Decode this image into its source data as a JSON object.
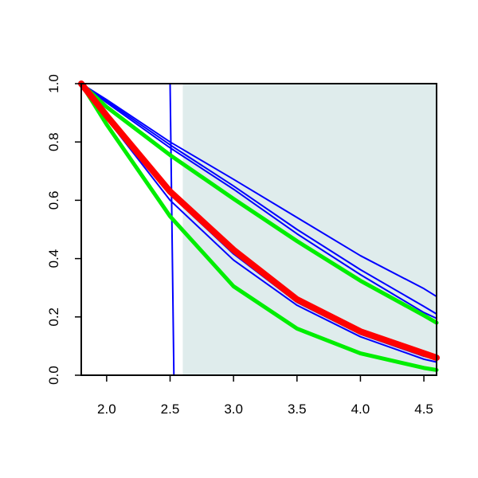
{
  "chart_data": {
    "type": "line",
    "title": "",
    "xlabel": "",
    "ylabel": "",
    "xlim": [
      1.8,
      4.6
    ],
    "ylim": [
      0,
      1
    ],
    "xticks": [
      "2.0",
      "2.5",
      "3.0",
      "3.5",
      "4.0",
      "4.5"
    ],
    "yticks": [
      "0.0",
      "0.2",
      "0.4",
      "0.6",
      "0.8",
      "1.0"
    ],
    "grid": false,
    "legend": "none",
    "shaded_region": {
      "x_from": 2.6,
      "x_to": 4.6,
      "color": "#dfecec"
    },
    "series": [
      {
        "color": "#0000ff",
        "style": "thin",
        "x": [
          1.8,
          2.5,
          2.515,
          2.53,
          4.6
        ],
        "y": [
          1.0,
          1.0,
          0.5,
          0.0,
          0.0
        ]
      },
      {
        "color": "#0000ff",
        "style": "thin",
        "x": [
          1.8,
          2.0,
          2.5,
          3.0,
          3.5,
          4.0,
          4.5,
          4.6
        ],
        "y": [
          1.0,
          0.945,
          0.8,
          0.672,
          0.541,
          0.41,
          0.297,
          0.27
        ]
      },
      {
        "color": "#0000ff",
        "style": "thin",
        "x": [
          1.8,
          2.0,
          2.5,
          3.0,
          3.5,
          4.0,
          4.5,
          4.6
        ],
        "y": [
          1.0,
          0.94,
          0.79,
          0.649,
          0.5,
          0.362,
          0.236,
          0.21
        ]
      },
      {
        "color": "#0000ff",
        "style": "thin",
        "x": [
          1.8,
          2.0,
          2.5,
          3.0,
          3.5,
          4.0,
          4.5,
          4.6
        ],
        "y": [
          1.0,
          0.935,
          0.78,
          0.638,
          0.485,
          0.345,
          0.215,
          0.195
        ]
      },
      {
        "color": "#0000ff",
        "style": "thin",
        "x": [
          1.8,
          2.0,
          2.5,
          3.0,
          3.5,
          4.0,
          4.5,
          4.6
        ],
        "y": [
          1.0,
          0.89,
          0.62,
          0.416,
          0.25,
          0.141,
          0.065,
          0.055
        ]
      },
      {
        "color": "#0000ff",
        "style": "thin",
        "x": [
          1.8,
          2.0,
          2.5,
          3.0,
          3.5,
          4.0,
          4.5,
          4.6
        ],
        "y": [
          1.0,
          0.88,
          0.6,
          0.395,
          0.24,
          0.132,
          0.055,
          0.045
        ]
      },
      {
        "color": "#00ee00",
        "style": "thick",
        "x": [
          1.8,
          2.0,
          2.5,
          3.0,
          3.5,
          4.0,
          4.5,
          4.6
        ],
        "y": [
          1.0,
          0.92,
          0.755,
          0.605,
          0.46,
          0.324,
          0.205,
          0.18
        ]
      },
      {
        "color": "#00ee00",
        "style": "thick",
        "x": [
          1.8,
          2.0,
          2.5,
          3.0,
          3.5,
          4.0,
          4.5,
          4.6
        ],
        "y": [
          1.0,
          0.86,
          0.545,
          0.305,
          0.16,
          0.075,
          0.025,
          0.018
        ]
      },
      {
        "color": "#ff0000",
        "style": "heavy",
        "x": [
          1.8,
          2.0,
          2.5,
          3.0,
          3.5,
          4.0,
          4.5,
          4.6
        ],
        "y": [
          1.0,
          0.89,
          0.63,
          0.43,
          0.26,
          0.15,
          0.075,
          0.06
        ]
      }
    ]
  }
}
